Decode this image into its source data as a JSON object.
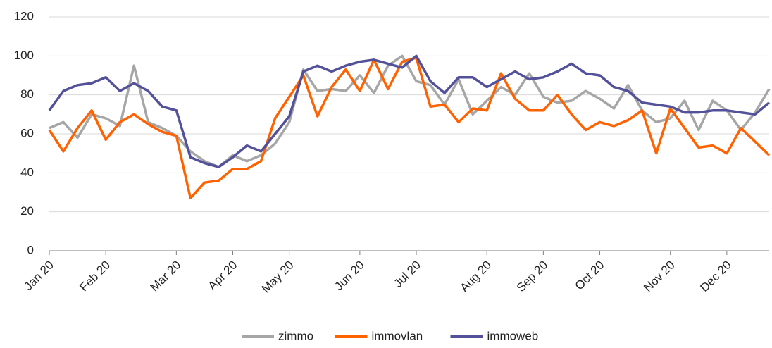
{
  "chart_data": {
    "type": "line",
    "categories": [
      "Jan 20",
      null,
      null,
      null,
      "Feb 20",
      null,
      null,
      null,
      null,
      "Mar 20",
      null,
      null,
      null,
      "Apr 20",
      null,
      null,
      null,
      "May 20",
      null,
      null,
      null,
      null,
      "Jun 20",
      null,
      null,
      null,
      "Jul 20",
      null,
      null,
      null,
      null,
      "Aug 20",
      null,
      null,
      null,
      "Sep 20",
      null,
      null,
      null,
      "Oct 20",
      null,
      null,
      null,
      null,
      "Nov 20",
      null,
      null,
      null,
      "Dec 20",
      null,
      null,
      null
    ],
    "series": [
      {
        "name": "zimmo",
        "color": "#a6a6a6",
        "values": [
          63,
          66,
          58,
          70,
          68,
          64,
          95,
          66,
          63,
          59,
          51,
          46,
          43,
          49,
          46,
          49,
          55,
          66,
          93,
          82,
          83,
          82,
          90,
          81,
          95,
          100,
          87,
          85,
          75,
          88,
          70,
          77,
          84,
          80,
          91,
          79,
          76,
          77,
          82,
          78,
          73,
          85,
          72,
          66,
          68,
          77,
          62,
          77,
          72,
          62,
          71,
          83
        ]
      },
      {
        "name": "immovlan",
        "color": "#ff6200",
        "values": [
          62,
          51,
          63,
          72,
          57,
          66,
          70,
          65,
          61,
          59,
          27,
          35,
          36,
          42,
          42,
          46,
          68,
          79,
          90,
          69,
          84,
          93,
          82,
          98,
          83,
          97,
          99,
          74,
          75,
          66,
          73,
          72,
          91,
          78,
          72,
          72,
          80,
          70,
          62,
          66,
          64,
          67,
          72,
          50,
          73,
          63,
          53,
          54,
          50,
          63,
          56,
          49
        ]
      },
      {
        "name": "immoweb",
        "color": "#525199",
        "values": [
          72,
          82,
          85,
          86,
          89,
          82,
          86,
          82,
          74,
          72,
          48,
          45,
          43,
          48,
          54,
          51,
          60,
          69,
          92,
          95,
          92,
          95,
          97,
          98,
          96,
          94,
          100,
          87,
          81,
          89,
          89,
          84,
          88,
          92,
          88,
          89,
          92,
          96,
          91,
          90,
          84,
          82,
          76,
          75,
          74,
          71,
          71,
          72,
          72,
          71,
          70,
          76
        ]
      }
    ],
    "ylim": [
      0,
      120
    ],
    "yticks": [
      0,
      20,
      40,
      60,
      80,
      100,
      120
    ],
    "grid": true,
    "legend": "bottom"
  }
}
